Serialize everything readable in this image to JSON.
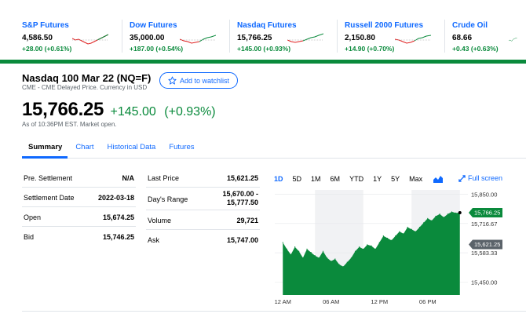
{
  "tickers": [
    {
      "name": "S&P Futures",
      "price": "4,586.50",
      "change": "+28.00 (+0.61%)"
    },
    {
      "name": "Dow Futures",
      "price": "35,000.00",
      "change": "+187.00 (+0.54%)"
    },
    {
      "name": "Nasdaq Futures",
      "price": "15,766.25",
      "change": "+145.00 (+0.93%)"
    },
    {
      "name": "Russell 2000 Futures",
      "price": "2,150.80",
      "change": "+14.90 (+0.70%)"
    },
    {
      "name": "Crude Oil",
      "price": "68.66",
      "change": "+0.43 (+0.63%)"
    }
  ],
  "quote": {
    "title": "Nasdaq 100 Mar 22 (NQ=F)",
    "subtitle": "CME - CME Delayed Price. Currency in USD",
    "watchlist_label": "Add to watchlist",
    "price": "15,766.25",
    "change": "+145.00",
    "change_pct": "(+0.93%)",
    "time_note": "As of 10:36PM EST. Market open."
  },
  "tabs": [
    {
      "label": "Summary",
      "active": true
    },
    {
      "label": "Chart",
      "active": false
    },
    {
      "label": "Historical Data",
      "active": false
    },
    {
      "label": "Futures",
      "active": false
    }
  ],
  "stats_left": [
    {
      "label": "Pre. Settlement",
      "value": "N/A"
    },
    {
      "label": "Settlement Date",
      "value": "2022-03-18"
    },
    {
      "label": "Open",
      "value": "15,674.25"
    },
    {
      "label": "Bid",
      "value": "15,746.25"
    }
  ],
  "stats_right": [
    {
      "label": "Last Price",
      "value": "15,621.25"
    },
    {
      "label": "Day's Range",
      "value": "15,670.00 -\n15,777.50"
    },
    {
      "label": "Volume",
      "value": "29,721"
    },
    {
      "label": "Ask",
      "value": "15,747.00"
    }
  ],
  "chart_controls": {
    "ranges": [
      "1D",
      "5D",
      "1M",
      "6M",
      "YTD",
      "1Y",
      "5Y",
      "Max"
    ],
    "active_range": "1D",
    "fullscreen_label": "Full screen"
  },
  "colors": {
    "accent": "#0f69ff",
    "positive": "#0a8a3c",
    "negative": "#e02020"
  },
  "chart_data": {
    "type": "area",
    "x_tick_labels": [
      "12 AM",
      "06 AM",
      "12 PM",
      "06 PM"
    ],
    "y_tick_labels": [
      "15,850.00",
      "15,716.67",
      "15,583.33",
      "15,450.00"
    ],
    "y_ticks": [
      15850.0,
      15716.67,
      15583.33,
      15450.0
    ],
    "ylim": [
      15390,
      15870
    ],
    "xlim": [
      -1,
      23
    ],
    "current_price_label": "15,766.25",
    "current_price": 15766.25,
    "last_price_label": "15,621.25",
    "last_price": 15621.25,
    "series": [
      {
        "x": [
          0,
          0.5,
          1,
          1.5,
          2,
          2.5,
          3,
          3.5,
          4,
          4.5,
          5,
          5.5,
          6,
          6.5,
          7,
          7.5,
          8,
          8.5,
          9,
          9.5,
          10,
          10.5,
          11,
          11.5,
          12,
          12.5,
          13,
          13.5,
          14,
          14.5,
          15,
          15.5,
          16,
          16.5,
          17,
          17.5,
          18,
          18.5,
          19,
          19.5,
          20,
          20.5,
          21,
          21.5,
          22
        ],
        "values": [
          15630,
          15600,
          15575,
          15610,
          15590,
          15560,
          15600,
          15585,
          15570,
          15560,
          15590,
          15560,
          15545,
          15555,
          15530,
          15520,
          15540,
          15560,
          15590,
          15610,
          15600,
          15620,
          15615,
          15600,
          15630,
          15660,
          15650,
          15640,
          15660,
          15680,
          15670,
          15700,
          15690,
          15680,
          15700,
          15720,
          15740,
          15730,
          15750,
          15760,
          15745,
          15760,
          15770,
          15765,
          15766
        ]
      }
    ]
  }
}
